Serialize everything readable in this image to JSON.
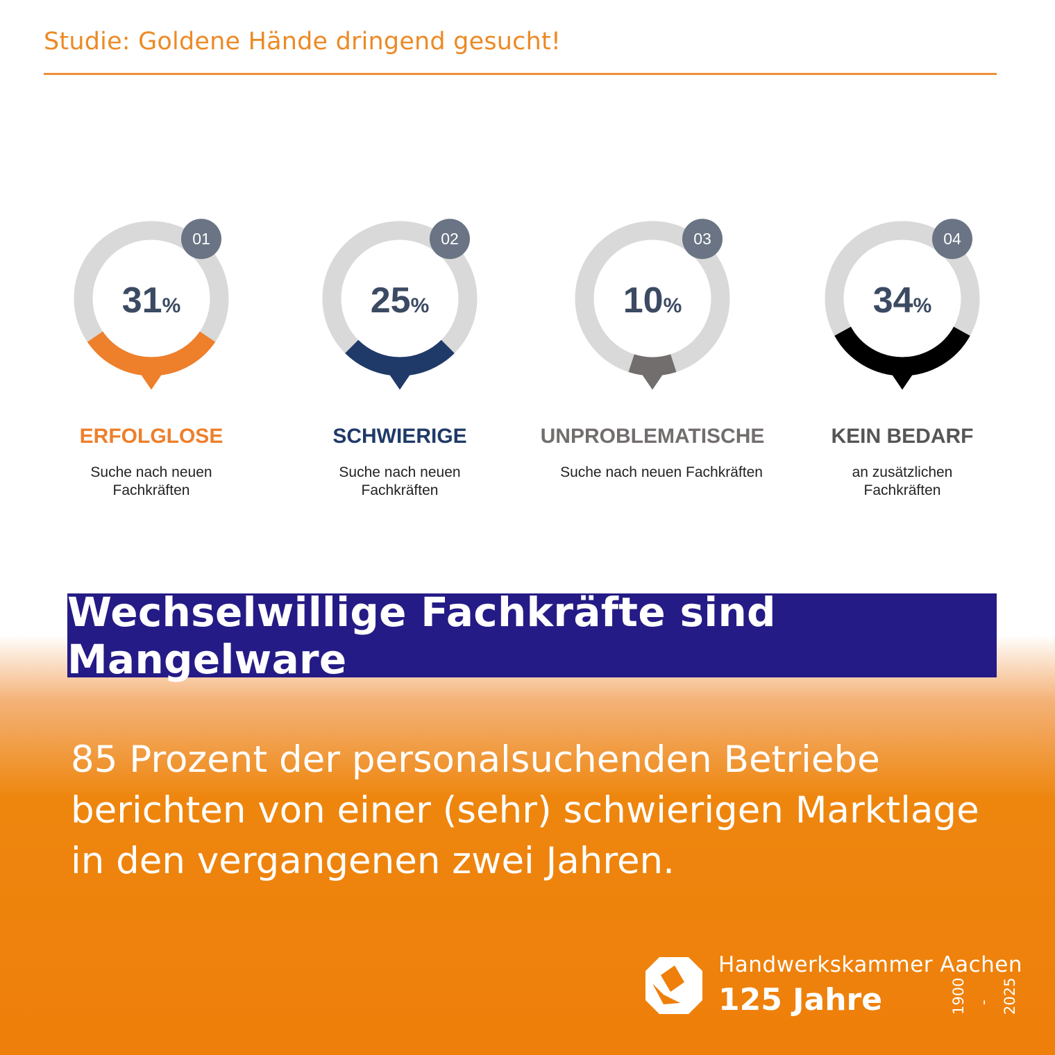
{
  "header": {
    "title": "Studie: Goldene Hände dringend gesucht!"
  },
  "chart_data": {
    "type": "donut",
    "unit": "%",
    "items": [
      {
        "number": "01",
        "value": 31,
        "display": "31",
        "label": "ERFOLGLOSE",
        "sub": "Suche nach neuen Fachkräften",
        "color": "#ee7f2b"
      },
      {
        "number": "02",
        "value": 25,
        "display": "25",
        "label": "SCHWIERIGE",
        "sub": "Suche nach neuen Fachkräften",
        "color": "#1f3a68"
      },
      {
        "number": "03",
        "value": 10,
        "display": "10",
        "label": "UNPROBLEMATISCHE",
        "sub": "Suche nach neuen Fachkräften",
        "color": "#726e6d"
      },
      {
        "number": "04",
        "value": 34,
        "display": "34",
        "label": "KEIN BEDARF",
        "sub": "an zusätzlichen Fachkräften",
        "color": "#000000"
      }
    ],
    "track_color": "#d9d9d9",
    "badge_color": "#6a7484",
    "value_text_color": "#3b4a62"
  },
  "banner": {
    "text": "Wechselwillige Fachkräfte sind Mangelware"
  },
  "body": {
    "text": "85 Prozent der personalsuchenden Betriebe berichten von einer (sehr) schwierigen Marktlage in den vergangenen zwei Jahren."
  },
  "footer": {
    "org": "Handwerkskammer Aachen",
    "years_label": "125 Jahre",
    "year_start": "1900",
    "year_separator": "-",
    "year_end": "2025",
    "logo_icon": "hwk-logo-icon"
  }
}
